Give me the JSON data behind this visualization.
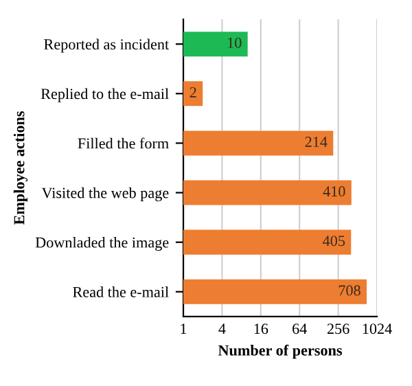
{
  "chart_data": {
    "type": "bar",
    "orientation": "horizontal",
    "xlabel": "Number of persons",
    "ylabel": "Employee actions",
    "categories": [
      "Reported as incident",
      "Replied to the e-mail",
      "Filled the form",
      "Visited the web page",
      "Downladed the image",
      "Read the e-mail"
    ],
    "values": [
      10,
      2,
      214,
      410,
      405,
      708
    ],
    "colors": [
      "#1db954",
      "#ed7d31",
      "#ed7d31",
      "#ed7d31",
      "#ed7d31",
      "#ed7d31"
    ],
    "log": "x",
    "xlim": [
      1,
      1024
    ],
    "xticks": [
      1,
      4,
      16,
      64,
      256,
      1024
    ],
    "grid": "x",
    "data_labels": true
  }
}
